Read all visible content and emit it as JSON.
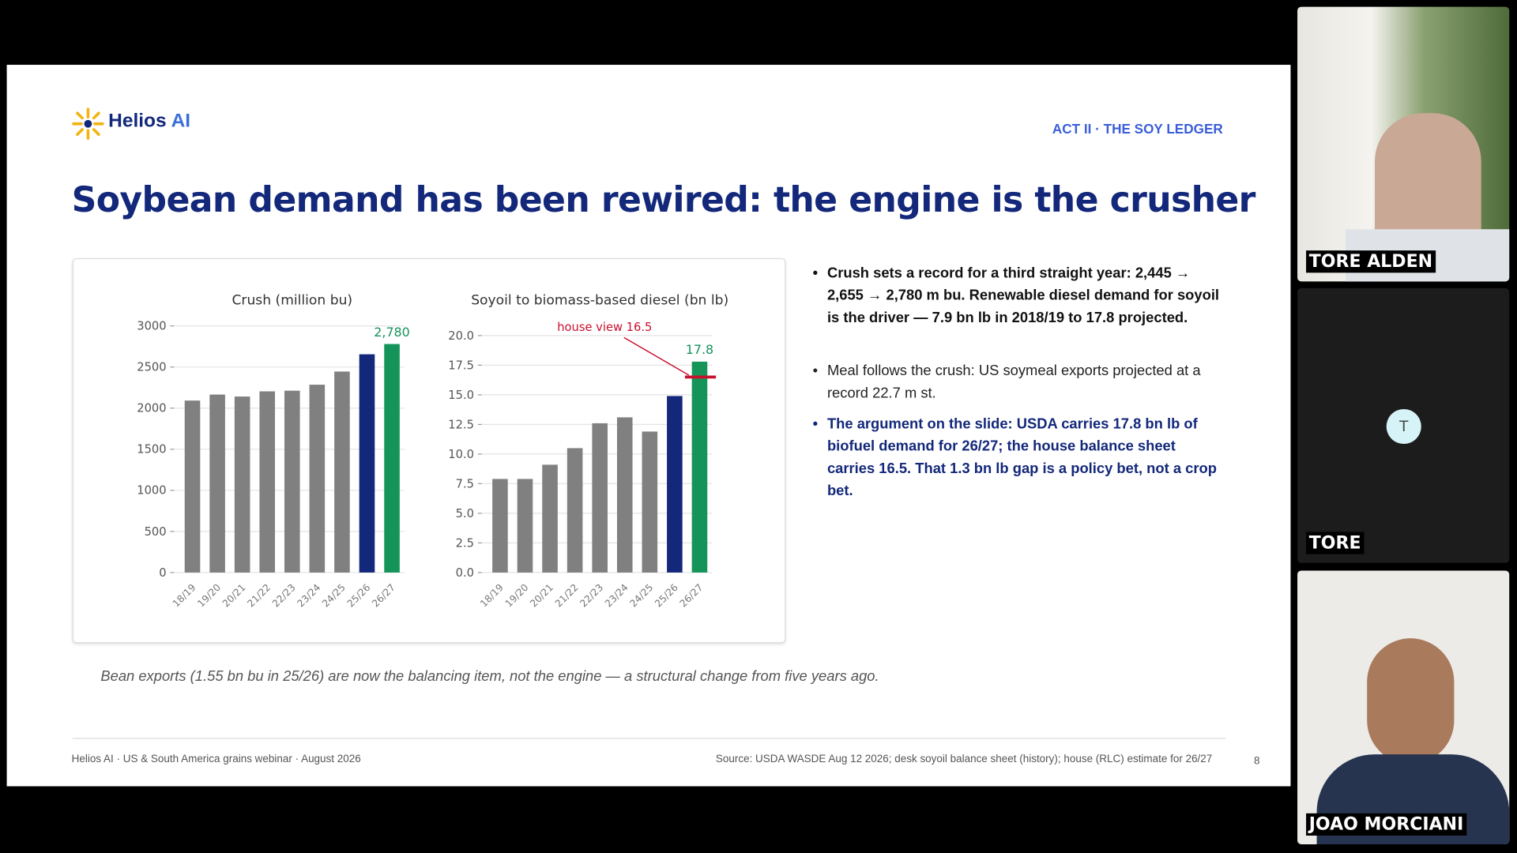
{
  "slide": {
    "logo_name": "Helios",
    "logo_suffix": "AI",
    "section": "ACT II · THE SOY LEDGER",
    "title": "Soybean demand has been rewired: the engine is the crusher",
    "bullets": [
      "Crush sets a record for a third straight year: 2,445 → 2,655 → 2,780 m bu. Renewable diesel demand for soyoil is the driver — 7.9 bn lb in 2018/19 to 17.8 projected.",
      "Meal follows the crush: US soymeal exports projected at a record 22.7 m st.",
      "The argument on the slide: USDA carries 17.8 bn lb of biofuel demand for 26/27; the house balance sheet carries 16.5. That 1.3 bn lb gap is a policy bet, not a crop bet."
    ],
    "caption": "Bean exports (1.55 bn bu in 25/26) are now the balancing item, not the engine — a structural change from five years ago.",
    "footer_left": "Helios AI · US & South America grains webinar · August 2026",
    "footer_source": "Source: USDA WASDE Aug 12 2026; desk soyoil balance sheet (history); house (RLC) estimate for 26/27",
    "page": "8"
  },
  "participants": [
    {
      "name": "TORE ALDEN"
    },
    {
      "name": "TORE",
      "initial": "T"
    },
    {
      "name": "JOAO MORCIANI"
    }
  ],
  "chart_data": [
    {
      "type": "bar",
      "title": "Crush (million bu)",
      "categories": [
        "18/19",
        "19/20",
        "20/21",
        "21/22",
        "22/23",
        "23/24",
        "24/25",
        "25/26",
        "26/27"
      ],
      "values": [
        2092,
        2165,
        2141,
        2204,
        2212,
        2285,
        2445,
        2655,
        2780
      ],
      "value_labels": [
        null,
        null,
        null,
        null,
        null,
        null,
        null,
        null,
        "2,780"
      ],
      "colors": [
        "#808080",
        "#808080",
        "#808080",
        "#808080",
        "#808080",
        "#808080",
        "#808080",
        "#13287a",
        "#15945a"
      ],
      "ylim": [
        0,
        3100
      ],
      "yticks": [
        0,
        500,
        1000,
        1500,
        2000,
        2500,
        3000
      ],
      "grid": true
    },
    {
      "type": "bar",
      "title": "Soyoil to biomass-based diesel (bn lb)",
      "categories": [
        "18/19",
        "19/20",
        "20/21",
        "21/22",
        "22/23",
        "23/24",
        "24/25",
        "25/26",
        "26/27"
      ],
      "values": [
        7.9,
        7.9,
        9.1,
        10.5,
        12.6,
        13.1,
        11.9,
        14.9,
        17.8
      ],
      "value_labels": [
        null,
        null,
        null,
        null,
        null,
        null,
        null,
        null,
        "17.8"
      ],
      "colors": [
        "#808080",
        "#808080",
        "#808080",
        "#808080",
        "#808080",
        "#808080",
        "#808080",
        "#13287a",
        "#15945a"
      ],
      "ylim": [
        0,
        20.8
      ],
      "yticks": [
        {
          "value": 0,
          "label": "0.0"
        },
        2.5,
        {
          "value": 5,
          "label": "5.0"
        },
        7.5,
        {
          "value": 10,
          "label": "10.0"
        },
        12.5,
        {
          "value": 15,
          "label": "15.0"
        },
        17.5,
        {
          "value": 20,
          "label": "20.0"
        }
      ],
      "grid": true,
      "reference": {
        "value": 16.5,
        "label": "house view 16.5",
        "color": "#c8102e"
      }
    }
  ]
}
